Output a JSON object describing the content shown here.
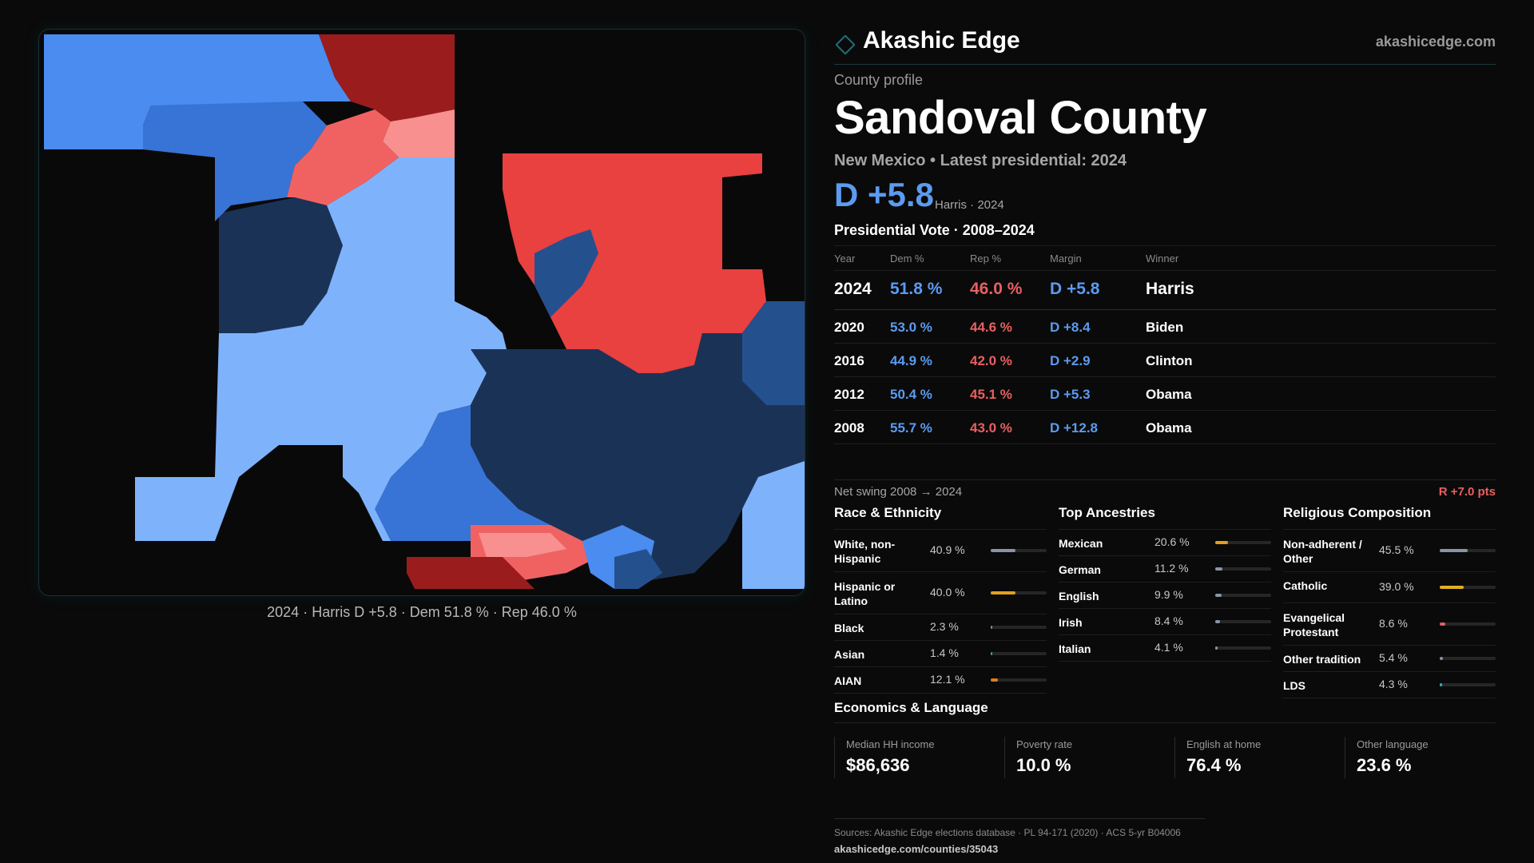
{
  "brand": {
    "name": "Akashic Edge",
    "url": "akashicedge.com",
    "accent": "#1f6f78"
  },
  "map": {
    "caption": "2024 · Harris D +5.8 · Dem 51.8 % · Rep 46.0 %",
    "colors": {
      "dem_light": "#7eb3fb",
      "dem_mid": "#4a8cf0",
      "dem_strong": "#3873d6",
      "dem_deep": "#1b3257",
      "dem_navy": "#25508e",
      "rep_light": "#f89090",
      "rep_mid": "#f06262",
      "rep_strong": "#e94040",
      "rep_deep": "#9b1c1c"
    }
  },
  "profile": {
    "kicker": "County profile",
    "county": "Sandoval County",
    "subtitle": "New Mexico • Latest presidential: 2024",
    "headline_margin": "D +5.8",
    "headline_sub": "Harris · 2024"
  },
  "presidential": {
    "title": "Presidential Vote · 2008–2024",
    "headers": {
      "year": "Year",
      "dem": "Dem %",
      "rep": "Rep %",
      "margin": "Margin",
      "winner": "Winner"
    },
    "rows": [
      {
        "year": "2024",
        "dem": "51.8 %",
        "rep": "46.0 %",
        "margin": "D +5.8",
        "winner": "Harris"
      },
      {
        "year": "2020",
        "dem": "53.0 %",
        "rep": "44.6 %",
        "margin": "D +8.4",
        "winner": "Biden"
      },
      {
        "year": "2016",
        "dem": "44.9 %",
        "rep": "42.0 %",
        "margin": "D +2.9",
        "winner": "Clinton"
      },
      {
        "year": "2012",
        "dem": "50.4 %",
        "rep": "45.1 %",
        "margin": "D +5.3",
        "winner": "Obama"
      },
      {
        "year": "2008",
        "dem": "55.7 %",
        "rep": "43.0 %",
        "margin": "D +12.8",
        "winner": "Obama"
      }
    ],
    "swing_label": "Net swing 2008 → 2024",
    "swing_value": "R +7.0 pts"
  },
  "race": {
    "title": "Race & Ethnicity",
    "items": [
      {
        "label": "White, non-Hispanic",
        "pct": "40.9 %",
        "value": 40.9,
        "color": "#8a94a8"
      },
      {
        "label": "Hispanic or Latino",
        "pct": "40.0 %",
        "value": 40.0,
        "color": "#e0a020"
      },
      {
        "label": "Black",
        "pct": "2.3 %",
        "value": 2.3,
        "color": "#8a7ad0"
      },
      {
        "label": "Asian",
        "pct": "1.4 %",
        "value": 1.4,
        "color": "#3aa6a0"
      },
      {
        "label": "AIAN",
        "pct": "12.1 %",
        "value": 12.1,
        "color": "#e07a20"
      }
    ]
  },
  "ancestry": {
    "title": "Top Ancestries",
    "items": [
      {
        "label": "Mexican",
        "pct": "20.6 %",
        "value": 20.6,
        "color": "#e0a020"
      },
      {
        "label": "German",
        "pct": "11.2 %",
        "value": 11.2,
        "color": "#8a94a8"
      },
      {
        "label": "English",
        "pct": "9.9 %",
        "value": 9.9,
        "color": "#8a94a8"
      },
      {
        "label": "Irish",
        "pct": "8.4 %",
        "value": 8.4,
        "color": "#8a94a8"
      },
      {
        "label": "Italian",
        "pct": "4.1 %",
        "value": 4.1,
        "color": "#8a94a8"
      }
    ]
  },
  "religion": {
    "title": "Religious Composition",
    "items": [
      {
        "label": "Non-adherent / Other",
        "pct": "45.5 %",
        "value": 45.5,
        "color": "#8a94a8"
      },
      {
        "label": "Catholic",
        "pct": "39.0 %",
        "value": 39.0,
        "color": "#e0b020"
      },
      {
        "label": "Evangelical Protestant",
        "pct": "8.6 %",
        "value": 8.6,
        "color": "#e06060"
      },
      {
        "label": "Other tradition",
        "pct": "5.4 %",
        "value": 5.4,
        "color": "#8a94a8"
      },
      {
        "label": "LDS",
        "pct": "4.3 %",
        "value": 4.3,
        "color": "#30b0b0"
      }
    ]
  },
  "economics": {
    "title": "Economics & Language",
    "cards": [
      {
        "label": "Median HH income",
        "value": "$86,636"
      },
      {
        "label": "Poverty rate",
        "value": "10.0 %"
      },
      {
        "label": "English at home",
        "value": "76.4 %"
      },
      {
        "label": "Other language",
        "value": "23.6 %"
      }
    ]
  },
  "footer": {
    "sources": "Sources: Akashic Edge elections database · PL 94-171 (2020) · ACS 5-yr B04006",
    "link": "akashicedge.com/counties/35043"
  }
}
